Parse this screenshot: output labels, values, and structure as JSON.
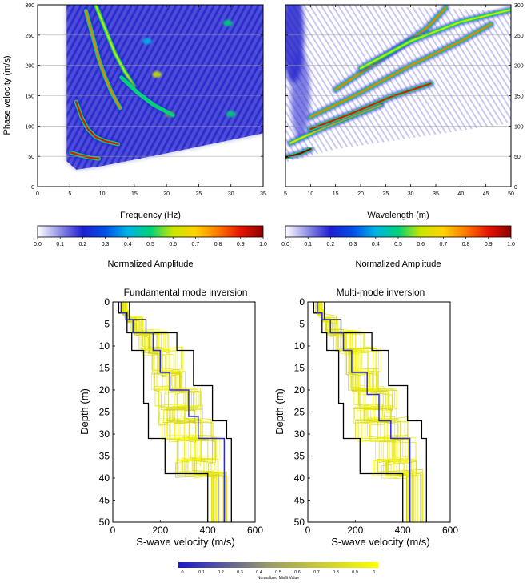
{
  "chart_data": [
    {
      "type": "heatmap",
      "id": "dispersion-frequency",
      "xlabel": "Frequency (Hz)",
      "ylabel": "Phase velocity (m/s)",
      "xlim": [
        0,
        35
      ],
      "ylim": [
        0,
        300
      ],
      "xticks": [
        0,
        5,
        10,
        15,
        20,
        25,
        30,
        35
      ],
      "yticks": [
        0,
        50,
        100,
        150,
        200,
        250,
        300
      ],
      "grid": "horizontal",
      "colorbar": {
        "label": "Normalized Amplitude",
        "ticks": [
          "0.0",
          "0.1",
          "0.2",
          "0.3",
          "0.4",
          "0.5",
          "0.6",
          "0.7",
          "0.8",
          "0.9",
          "1.0"
        ]
      },
      "ridges": [
        {
          "amplitude": 0.9,
          "points": [
            [
              5.2,
              56
            ],
            [
              6.5,
              52
            ],
            [
              8,
              48
            ],
            [
              9.5,
              46
            ]
          ]
        },
        {
          "amplitude": 0.85,
          "points": [
            [
              6,
              140
            ],
            [
              6.8,
              115
            ],
            [
              7.8,
              95
            ],
            [
              9,
              82
            ],
            [
              10.5,
              75
            ],
            [
              12.5,
              70
            ]
          ]
        },
        {
          "amplitude": 0.8,
          "points": [
            [
              7.5,
              290
            ],
            [
              8.5,
              250
            ],
            [
              9.5,
              210
            ],
            [
              10.5,
              180
            ],
            [
              11.5,
              155
            ],
            [
              12.8,
              130
            ]
          ]
        },
        {
          "amplitude": 0.55,
          "points": [
            [
              9,
              300
            ],
            [
              10.5,
              260
            ],
            [
              12,
              220
            ],
            [
              13.5,
              190
            ],
            [
              15,
              165
            ]
          ]
        },
        {
          "amplitude": 0.5,
          "points": [
            [
              13,
              180
            ],
            [
              15.5,
              155
            ],
            [
              18,
              135
            ],
            [
              21,
              118
            ]
          ]
        }
      ],
      "hotspots": [
        {
          "x": 18.5,
          "y": 185,
          "amplitude": 0.6
        },
        {
          "x": 20.5,
          "y": 120,
          "amplitude": 0.55
        },
        {
          "x": 30,
          "y": 120,
          "amplitude": 0.5
        },
        {
          "x": 29.5,
          "y": 270,
          "amplitude": 0.45
        },
        {
          "x": 17,
          "y": 240,
          "amplitude": 0.4
        }
      ]
    },
    {
      "type": "heatmap",
      "id": "dispersion-wavelength",
      "xlabel": "Wavelength (m)",
      "ylabel": "",
      "xlim": [
        5,
        50
      ],
      "ylim": [
        0,
        300
      ],
      "xticks": [
        5,
        10,
        15,
        20,
        25,
        30,
        35,
        40,
        45,
        50
      ],
      "yticks": [
        0,
        50,
        100,
        150,
        200,
        250,
        300
      ],
      "grid": "horizontal",
      "colorbar": {
        "label": "Normalized Amplitude",
        "ticks": [
          "0.0",
          "0.1",
          "0.2",
          "0.3",
          "0.4",
          "0.5",
          "0.6",
          "0.7",
          "0.8",
          "0.9",
          "1.0"
        ]
      },
      "ridges": [
        {
          "amplitude": 0.95,
          "points": [
            [
              5,
              48
            ],
            [
              8,
              55
            ],
            [
              10,
              62
            ]
          ]
        },
        {
          "amplitude": 0.7,
          "points": [
            [
              6,
              72
            ],
            [
              12,
              95
            ],
            [
              18,
              115
            ],
            [
              24,
              135
            ]
          ]
        },
        {
          "amplitude": 0.85,
          "points": [
            [
              10,
              95
            ],
            [
              18,
              120
            ],
            [
              26,
              148
            ],
            [
              34,
              170
            ]
          ]
        },
        {
          "amplitude": 0.8,
          "points": [
            [
              10,
              115
            ],
            [
              20,
              155
            ],
            [
              30,
              200
            ],
            [
              40,
              240
            ],
            [
              46,
              268
            ]
          ]
        },
        {
          "amplitude": 0.75,
          "points": [
            [
              15,
              160
            ],
            [
              25,
              215
            ],
            [
              33,
              260
            ],
            [
              37,
              295
            ]
          ]
        },
        {
          "amplitude": 0.6,
          "points": [
            [
              20,
              195
            ],
            [
              30,
              240
            ],
            [
              40,
              272
            ],
            [
              50,
              292
            ]
          ]
        }
      ]
    },
    {
      "type": "line",
      "id": "fundamental-inversion",
      "title": "Fundamental mode inversion",
      "xlabel": "S-wave velocity (m/s)",
      "ylabel": "Depth (m)",
      "xlim": [
        0,
        600
      ],
      "ylim": [
        50,
        0
      ],
      "xticks": [
        0,
        200,
        400,
        600
      ],
      "yticks": [
        0,
        5,
        10,
        15,
        20,
        25,
        30,
        35,
        40,
        45,
        50
      ],
      "bounds": {
        "lower": [
          [
            25,
            0
          ],
          [
            25,
            2.5
          ],
          [
            60,
            2.5
          ],
          [
            60,
            7
          ],
          [
            80,
            7
          ],
          [
            80,
            11
          ],
          [
            130,
            11
          ],
          [
            130,
            23
          ],
          [
            150,
            23
          ],
          [
            150,
            31
          ],
          [
            220,
            31
          ],
          [
            220,
            39
          ],
          [
            400,
            39
          ],
          [
            400,
            50
          ]
        ],
        "upper": [
          [
            70,
            0
          ],
          [
            70,
            4
          ],
          [
            140,
            4
          ],
          [
            140,
            7
          ],
          [
            270,
            7
          ],
          [
            270,
            11
          ],
          [
            340,
            11
          ],
          [
            340,
            19
          ],
          [
            420,
            19
          ],
          [
            420,
            27
          ],
          [
            480,
            27
          ],
          [
            480,
            31
          ],
          [
            500,
            31
          ],
          [
            500,
            50
          ]
        ]
      },
      "best": [
        [
          35,
          0
        ],
        [
          35,
          2.5
        ],
        [
          55,
          2.5
        ],
        [
          55,
          4
        ],
        [
          85,
          4
        ],
        [
          85,
          7
        ],
        [
          170,
          7
        ],
        [
          170,
          11
        ],
        [
          200,
          11
        ],
        [
          200,
          16
        ],
        [
          240,
          16
        ],
        [
          240,
          20
        ],
        [
          320,
          20
        ],
        [
          320,
          26
        ],
        [
          360,
          26
        ],
        [
          360,
          31
        ],
        [
          470,
          31
        ],
        [
          470,
          50
        ]
      ]
    },
    {
      "type": "line",
      "id": "multimode-inversion",
      "title": "Multi-mode inversion",
      "xlabel": "S-wave velocity (m/s)",
      "ylabel": "Depth (m)",
      "xlim": [
        0,
        600
      ],
      "ylim": [
        50,
        0
      ],
      "xticks": [
        0,
        200,
        400,
        600
      ],
      "yticks": [
        0,
        5,
        10,
        15,
        20,
        25,
        30,
        35,
        40,
        45,
        50
      ],
      "bounds": {
        "lower": [
          [
            25,
            0
          ],
          [
            25,
            2.5
          ],
          [
            60,
            2.5
          ],
          [
            60,
            7
          ],
          [
            80,
            7
          ],
          [
            80,
            11
          ],
          [
            130,
            11
          ],
          [
            130,
            23
          ],
          [
            150,
            23
          ],
          [
            150,
            31
          ],
          [
            220,
            31
          ],
          [
            220,
            39
          ],
          [
            400,
            39
          ],
          [
            400,
            50
          ]
        ],
        "upper": [
          [
            70,
            0
          ],
          [
            70,
            4
          ],
          [
            140,
            4
          ],
          [
            140,
            7
          ],
          [
            270,
            7
          ],
          [
            270,
            11
          ],
          [
            340,
            11
          ],
          [
            340,
            19
          ],
          [
            420,
            19
          ],
          [
            420,
            27
          ],
          [
            480,
            27
          ],
          [
            480,
            31
          ],
          [
            500,
            31
          ],
          [
            500,
            50
          ]
        ]
      },
      "best": [
        [
          40,
          0
        ],
        [
          40,
          2.5
        ],
        [
          60,
          2.5
        ],
        [
          60,
          4
        ],
        [
          95,
          4
        ],
        [
          95,
          7
        ],
        [
          150,
          7
        ],
        [
          150,
          11
        ],
        [
          185,
          11
        ],
        [
          185,
          16
        ],
        [
          250,
          16
        ],
        [
          250,
          21
        ],
        [
          300,
          21
        ],
        [
          300,
          27
        ],
        [
          350,
          27
        ],
        [
          350,
          31
        ],
        [
          430,
          31
        ],
        [
          430,
          50
        ]
      ]
    }
  ],
  "misfit_colorbar": {
    "label": "Normalized Misfit Value",
    "ticks": [
      "0",
      "0.1",
      "0.2",
      "0.3",
      "0.4",
      "0.5",
      "0.6",
      "0.7",
      "0.8",
      "0.9",
      "1"
    ]
  },
  "colors": {
    "amplitude_scale": [
      "#ffffff",
      "#8e8ee6",
      "#1e1ed2",
      "#0050e6",
      "#00b4e6",
      "#00d278",
      "#c8e600",
      "#ffd200",
      "#ff7800",
      "#e61400",
      "#8c0000"
    ],
    "misfit_scale": [
      "#1a1acc",
      "#ffff00"
    ],
    "best_model": "#2b2bd9",
    "bounds": "#000000",
    "models": "#d2c800"
  }
}
